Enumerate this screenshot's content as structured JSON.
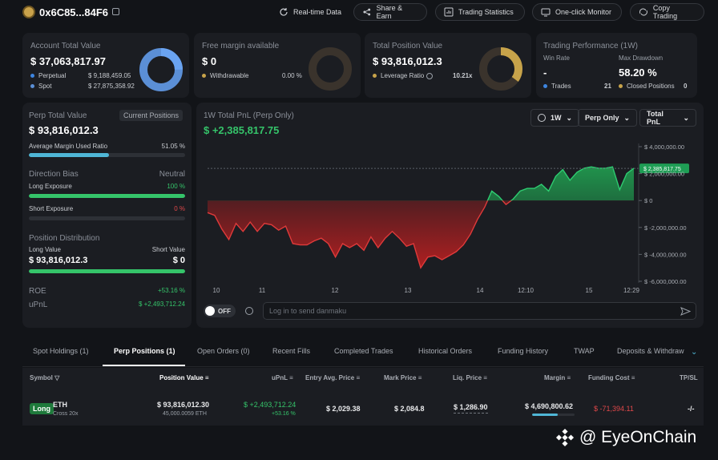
{
  "header": {
    "address": "0x6C85...84F6",
    "buttons": [
      "Real-time Data",
      "Share & Earn",
      "Trading Statistics",
      "One-click Monitor",
      "Copy Trading"
    ]
  },
  "account": {
    "label": "Account Total Value",
    "value": "$ 37,063,817.97",
    "perp_label": "Perpetual",
    "perp_value": "$ 9,188,459.05",
    "spot_label": "Spot",
    "spot_value": "$ 27,875,358.92",
    "perp_fraction": 0.248,
    "colors": {
      "perp": "#3d85e0",
      "spot": "#5b8fd6"
    }
  },
  "free_margin": {
    "label": "Free margin available",
    "value": "$ 0",
    "withdrawable_label": "Withdrawable",
    "withdrawable_value": "0.00 %"
  },
  "position": {
    "label": "Total Position Value",
    "value": "$ 93,816,012.3",
    "leverage_label": "Leverage Ratio",
    "leverage_value": "10.21x",
    "leverage_fraction": 0.35,
    "color": "#c7a34a"
  },
  "performance": {
    "label": "Trading Performance (1W)",
    "win_rate_label": "Win Rate",
    "win_rate": "-",
    "drawdown_label": "Max Drawdown",
    "drawdown": "58.20 %",
    "trades_label": "Trades",
    "trades": "21",
    "closed_label": "Closed Positions",
    "closed": "0"
  },
  "perp_panel": {
    "label": "Perp Total Value",
    "tag": "Current Positions",
    "value": "$ 93,816,012.3",
    "margin_label": "Average Margin Used Ratio",
    "margin_value": "51.05 %",
    "margin_fraction": 0.5105,
    "bias_label": "Direction Bias",
    "bias_value": "Neutral",
    "long_exp_label": "Long Exposure",
    "long_exp_value": "100 %",
    "long_exp_fraction": 1.0,
    "short_exp_label": "Short Exposure",
    "short_exp_value": "0 %",
    "short_exp_fraction": 0,
    "dist_label": "Position Distribution",
    "long_value_label": "Long Value",
    "short_value_label": "Short Value",
    "long_value": "$ 93,816,012.3",
    "short_value": "$ 0",
    "roe_label": "ROE",
    "roe_value": "+53.16 %",
    "upnl_label": "uPnL",
    "upnl_value": "$ +2,493,712.24"
  },
  "pnl_chart": {
    "title": "1W Total PnL (Perp Only)",
    "value": "$ +2,385,817.75",
    "period": "1W",
    "filter": "Perp Only",
    "metric": "Total PnL",
    "current_label": "$ 2,385,817.75"
  },
  "chart_data": {
    "type": "area",
    "y_ticks": [
      "$ 4,000,000.00",
      "$ 2,000,000.00",
      "$ 0",
      "$ -2,000,000.00",
      "$ -4,000,000.00",
      "$ -6,000,000.00"
    ],
    "x_ticks": [
      "10",
      "11",
      "12",
      "13",
      "14",
      "12:10",
      "15",
      "12:29"
    ],
    "ylim": [
      -6000000,
      4000000
    ],
    "series": [
      {
        "values": [
          -900000,
          -1100000,
          -2100000,
          -2900000,
          -1700000,
          -2300000,
          -1600000,
          -2300000,
          -1700000,
          -1800000,
          -2200000,
          -1900000,
          -3200000,
          -3300000,
          -3300000,
          -3000000,
          -2800000,
          -3200000,
          -4200000,
          -3200000,
          -3500000,
          -3200000,
          -3700000,
          -2700000,
          -3500000,
          -2800000,
          -2300000,
          -2800000,
          -3400000,
          -3200000,
          -5000000,
          -4200000,
          -4100000,
          -4400000,
          -4100000,
          -3800000,
          -3300000,
          -2500000,
          -1400000,
          -500000,
          700000,
          300000,
          -300000,
          100000,
          700000,
          900000,
          900000,
          1200000,
          700000,
          1800000,
          2300000,
          1500000,
          2100000,
          2400000,
          2500000,
          2400000,
          2400000,
          2500000,
          800000,
          2000000,
          2400000
        ]
      }
    ]
  },
  "danmaku": {
    "toggle": "OFF",
    "placeholder": "Log in to send danmaku"
  },
  "tabs": [
    "Spot Holdings (1)",
    "Perp Positions (1)",
    "Open Orders (0)",
    "Recent Fills",
    "Completed Trades",
    "Historical Orders",
    "Funding History",
    "TWAP",
    "Deposits & Withdraw"
  ],
  "table": {
    "headers": [
      "Symbol",
      "Position Value",
      "uPnL",
      "Entry Avg. Price",
      "Mark Price",
      "Liq. Price",
      "Margin",
      "Funding Cost",
      "TP/SL"
    ],
    "row": {
      "side": "Long",
      "coin": "ETH",
      "mode": "Cross 20x",
      "position_value": "$ 93,816,012.30",
      "position_size": "45,000.0059 ETH",
      "upnl": "$ +2,493,712.24",
      "upnl_pct": "+53.16 %",
      "entry": "$ 2,029.38",
      "mark": "$ 2,084.8",
      "liq": "$ 1,286.90",
      "margin": "$ 4,690,800.62",
      "margin_fraction": 0.6,
      "funding": "$ -71,394.11",
      "tpsl": "-/-"
    }
  },
  "watermark": "@ EyeOnChain"
}
